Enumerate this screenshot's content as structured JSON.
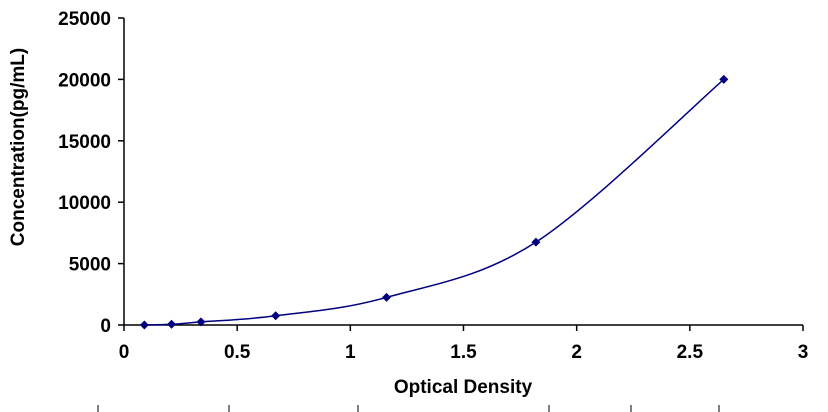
{
  "chart_data": {
    "type": "scatter",
    "title": "",
    "xlabel": "Optical Density",
    "ylabel": "Concentration(pg/mL)",
    "xlim": [
      0,
      3
    ],
    "ylim": [
      0,
      25000
    ],
    "xticks": [
      "0",
      "0.5",
      "1",
      "1.5",
      "2",
      "2.5",
      "3"
    ],
    "yticks": [
      "0",
      "5000",
      "10000",
      "15000",
      "20000",
      "25000"
    ],
    "grid": false,
    "legend": "none",
    "series": [
      {
        "line": "smooth",
        "marker": "diamond",
        "x": [
          0.09,
          0.21,
          0.34,
          0.67,
          1.16,
          1.82,
          2.65
        ],
        "y": [
          0,
          62.5,
          250,
          750,
          2250,
          6750,
          20000
        ]
      }
    ]
  },
  "colors": {
    "series": "#000080",
    "axis": "#000000"
  }
}
